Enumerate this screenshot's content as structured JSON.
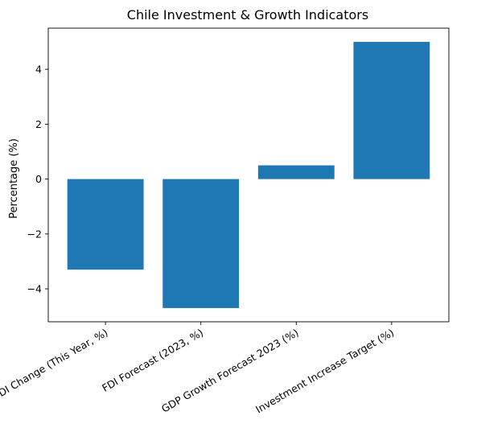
{
  "chart_data": {
    "type": "bar",
    "title": "Chile Investment & Growth Indicators",
    "xlabel": "",
    "ylabel": "Percentage (%)",
    "categories": [
      "FDI Change (This Year, %)",
      "FDI Forecast (2023, %)",
      "GDP Growth Forecast 2023 (%)",
      "Investment Increase Target (%)"
    ],
    "values": [
      -3.3,
      -4.7,
      0.5,
      5.0
    ],
    "ylim": [
      -5.2,
      5.5
    ],
    "yticks": [
      -4,
      -2,
      0,
      2,
      4
    ],
    "ytick_labels": [
      "−4",
      "−2",
      "0",
      "2",
      "4"
    ],
    "bar_color": "#1f77b4",
    "grid": false,
    "legend": "none"
  }
}
